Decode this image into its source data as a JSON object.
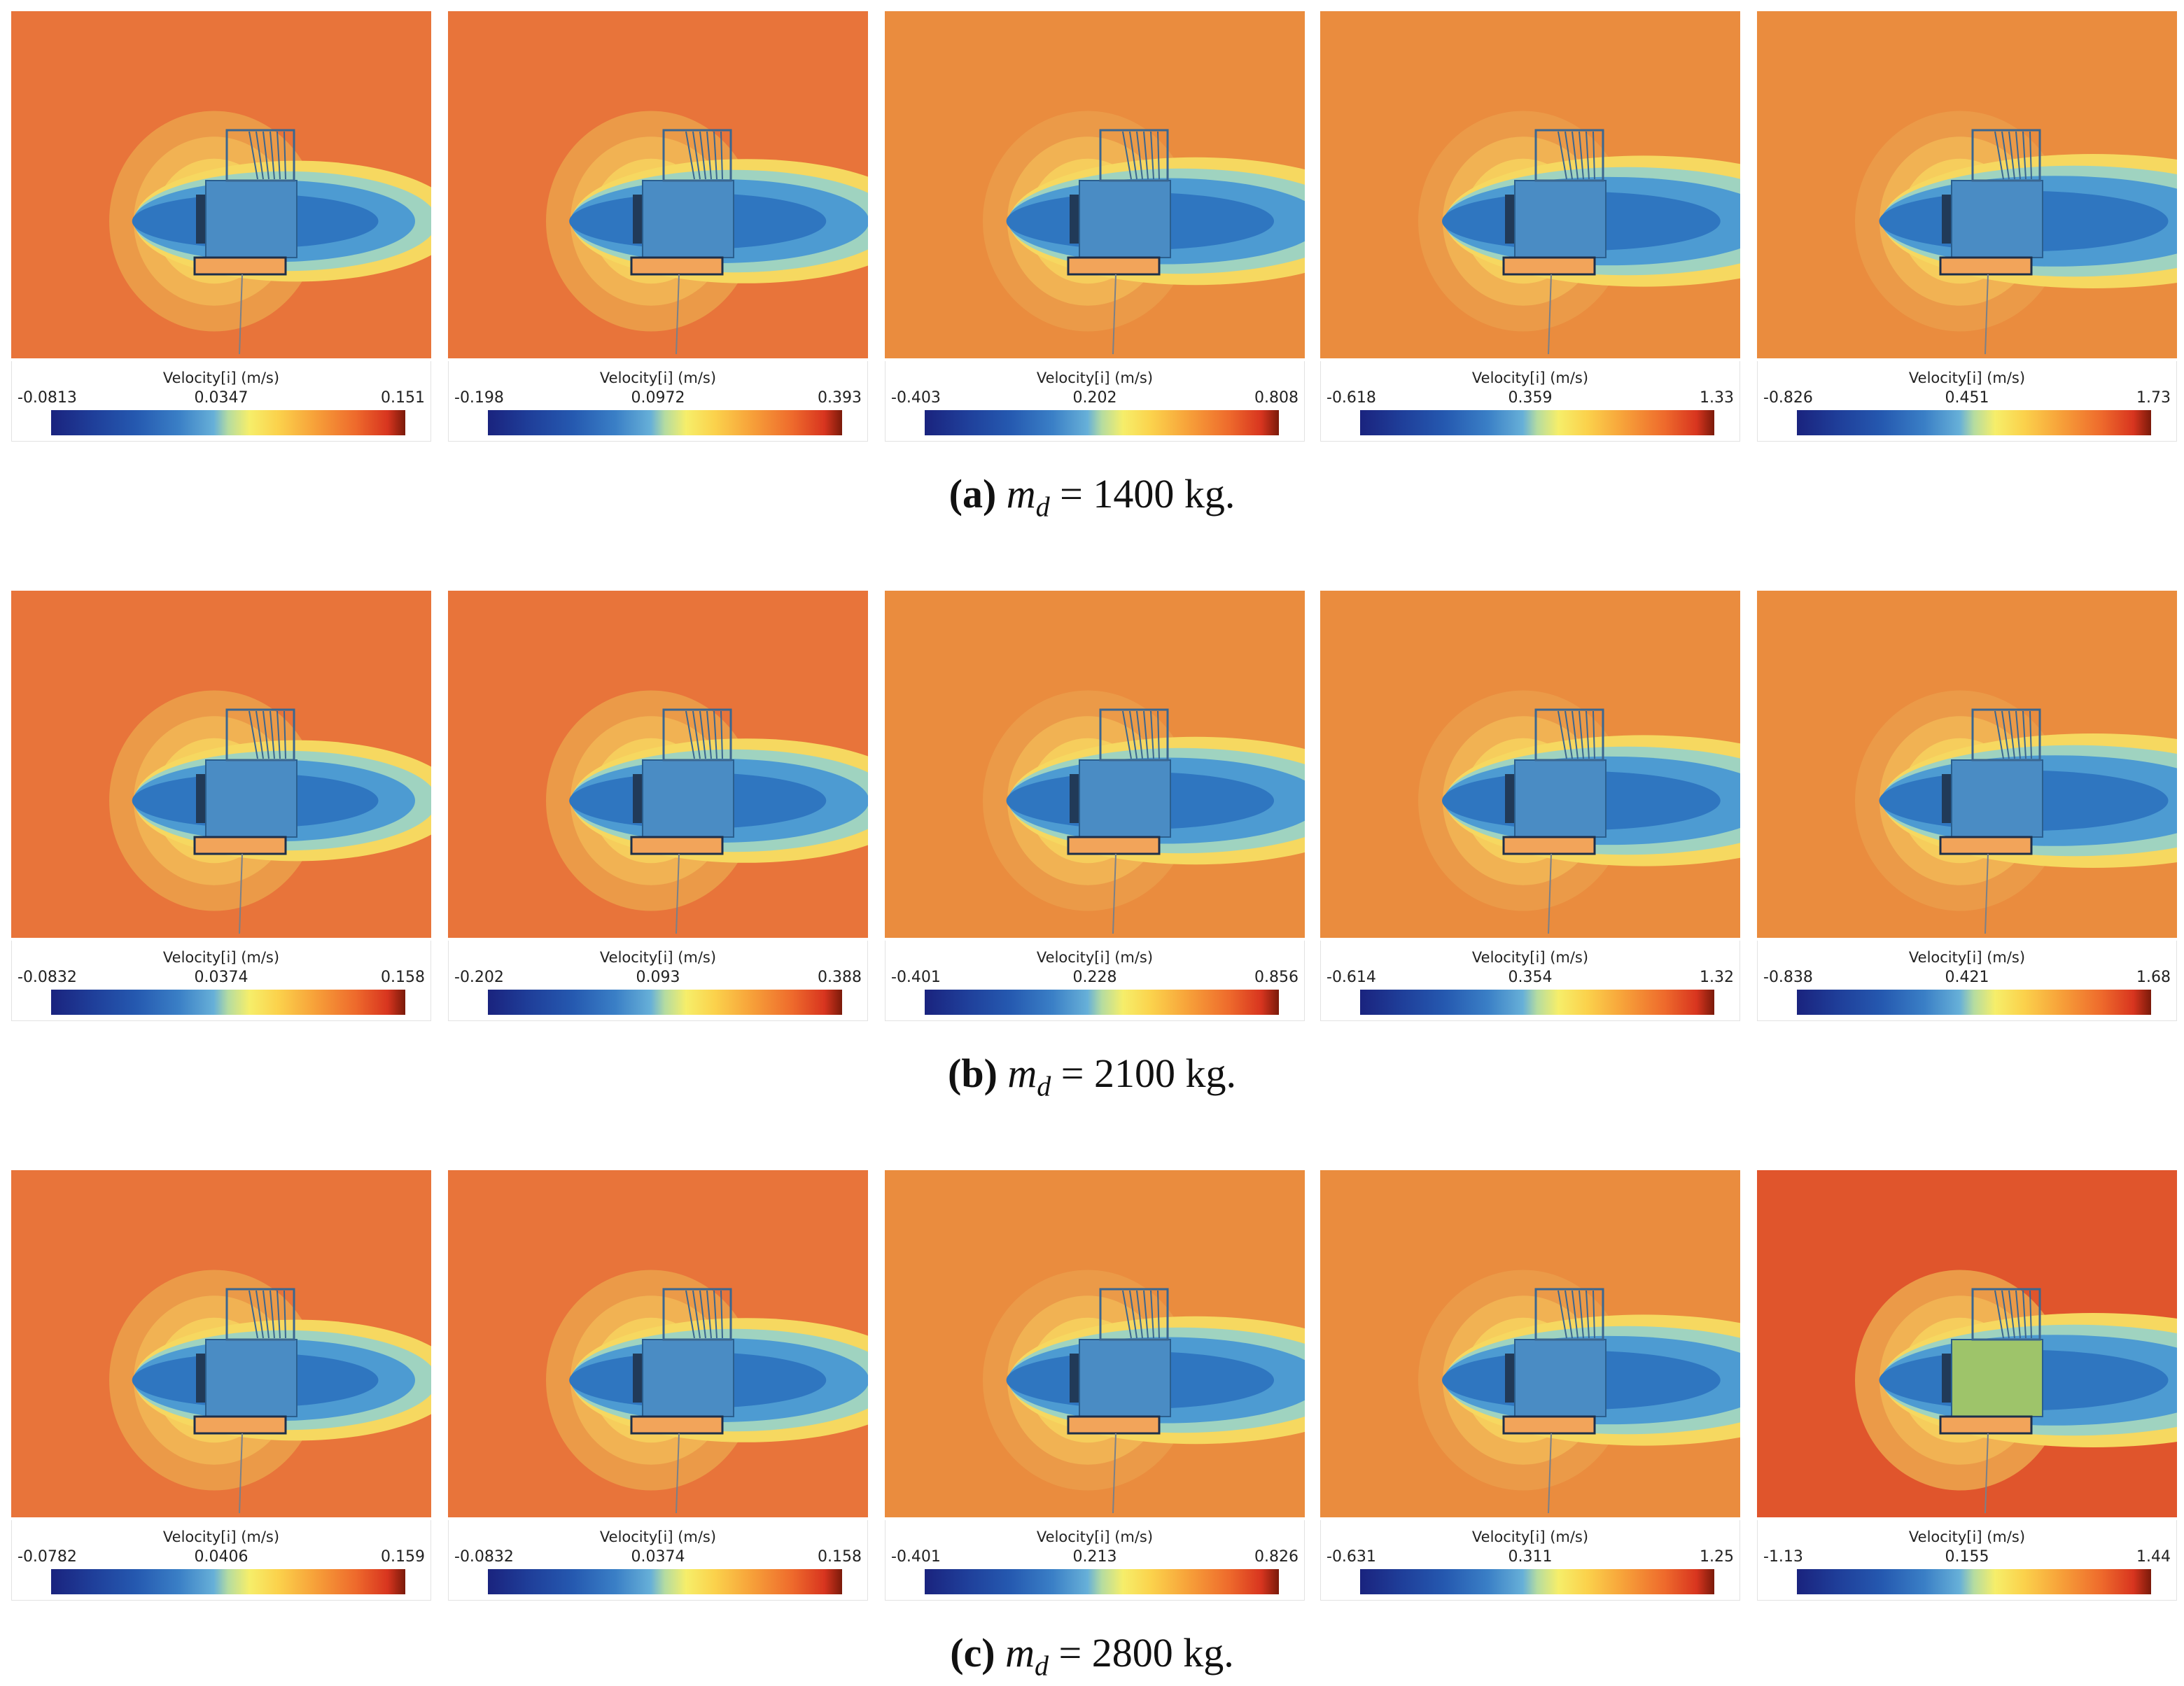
{
  "figure": {
    "rows": [
      {
        "caption": {
          "label": "(a)",
          "variable": "m",
          "subscript": "d",
          "text": "= 1400 kg."
        },
        "panels": [
          {
            "colorbar_title": "Velocity[i] (m/s)",
            "min": "-0.0813",
            "mid": "0.0347",
            "max": "0.151"
          },
          {
            "colorbar_title": "Velocity[i] (m/s)",
            "min": "-0.198",
            "mid": "0.0972",
            "max": "0.393"
          },
          {
            "colorbar_title": "Velocity[i] (m/s)",
            "min": "-0.403",
            "mid": "0.202",
            "max": "0.808"
          },
          {
            "colorbar_title": "Velocity[i] (m/s)",
            "min": "-0.618",
            "mid": "0.359",
            "max": "1.33"
          },
          {
            "colorbar_title": "Velocity[i] (m/s)",
            "min": "-0.826",
            "mid": "0.451",
            "max": "1.73"
          }
        ]
      },
      {
        "caption": {
          "label": "(b)",
          "variable": "m",
          "subscript": "d",
          "text": "= 2100 kg."
        },
        "panels": [
          {
            "colorbar_title": "Velocity[i] (m/s)",
            "min": "-0.0832",
            "mid": "0.0374",
            "max": "0.158"
          },
          {
            "colorbar_title": "Velocity[i] (m/s)",
            "min": "-0.202",
            "mid": "0.093",
            "max": "0.388"
          },
          {
            "colorbar_title": "Velocity[i] (m/s)",
            "min": "-0.401",
            "mid": "0.228",
            "max": "0.856"
          },
          {
            "colorbar_title": "Velocity[i] (m/s)",
            "min": "-0.614",
            "mid": "0.354",
            "max": "1.32"
          },
          {
            "colorbar_title": "Velocity[i] (m/s)",
            "min": "-0.838",
            "mid": "0.421",
            "max": "1.68"
          }
        ]
      },
      {
        "caption": {
          "label": "(c)",
          "variable": "m",
          "subscript": "d",
          "text": "= 2800 kg."
        },
        "panels": [
          {
            "colorbar_title": "Velocity[i] (m/s)",
            "min": "-0.0782",
            "mid": "0.0406",
            "max": "0.159"
          },
          {
            "colorbar_title": "Velocity[i] (m/s)",
            "min": "-0.0832",
            "mid": "0.0374",
            "max": "0.158"
          },
          {
            "colorbar_title": "Velocity[i] (m/s)",
            "min": "-0.401",
            "mid": "0.213",
            "max": "0.826"
          },
          {
            "colorbar_title": "Velocity[i] (m/s)",
            "min": "-0.631",
            "mid": "0.311",
            "max": "1.25"
          },
          {
            "colorbar_title": "Velocity[i] (m/s)",
            "min": "-1.13",
            "mid": "0.155",
            "max": "1.44"
          }
        ]
      }
    ]
  }
}
